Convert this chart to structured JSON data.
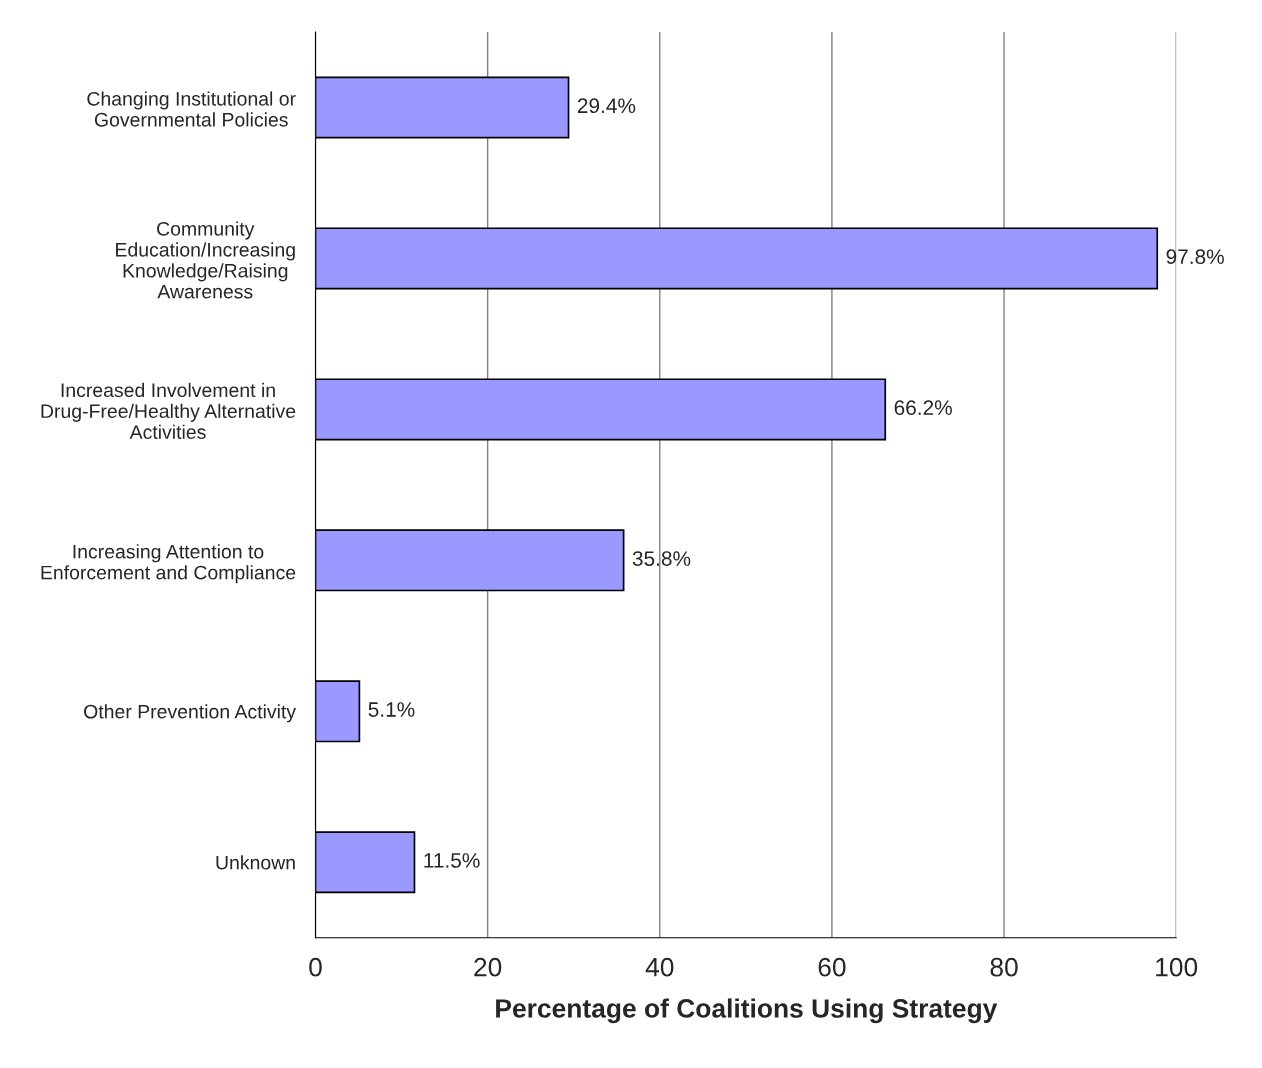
{
  "chart_data": {
    "type": "bar",
    "orientation": "horizontal",
    "categories": [
      "Changing Institutional or\nGovernmental Policies",
      "Community\nEducation/Increasing\nKnowledge/Raising\nAwareness",
      "Increased Involvement in\nDrug-Free/Healthy Alternative\nActivities",
      "Increasing Attention to\nEnforcement and Compliance",
      "Other Prevention Activity",
      "Unknown"
    ],
    "values": [
      29.4,
      97.8,
      66.2,
      35.8,
      5.1,
      11.5
    ],
    "value_labels": [
      "29.4%",
      "97.8%",
      "66.2%",
      "35.8%",
      "5.1%",
      "11.5%"
    ],
    "color": "#9999ff",
    "xlabel": "Percentage of Coalitions Using Strategy",
    "xlim": [
      0,
      100
    ],
    "xticks": [
      0,
      20,
      40,
      60,
      80,
      100
    ],
    "grid": "x",
    "legend": false
  }
}
